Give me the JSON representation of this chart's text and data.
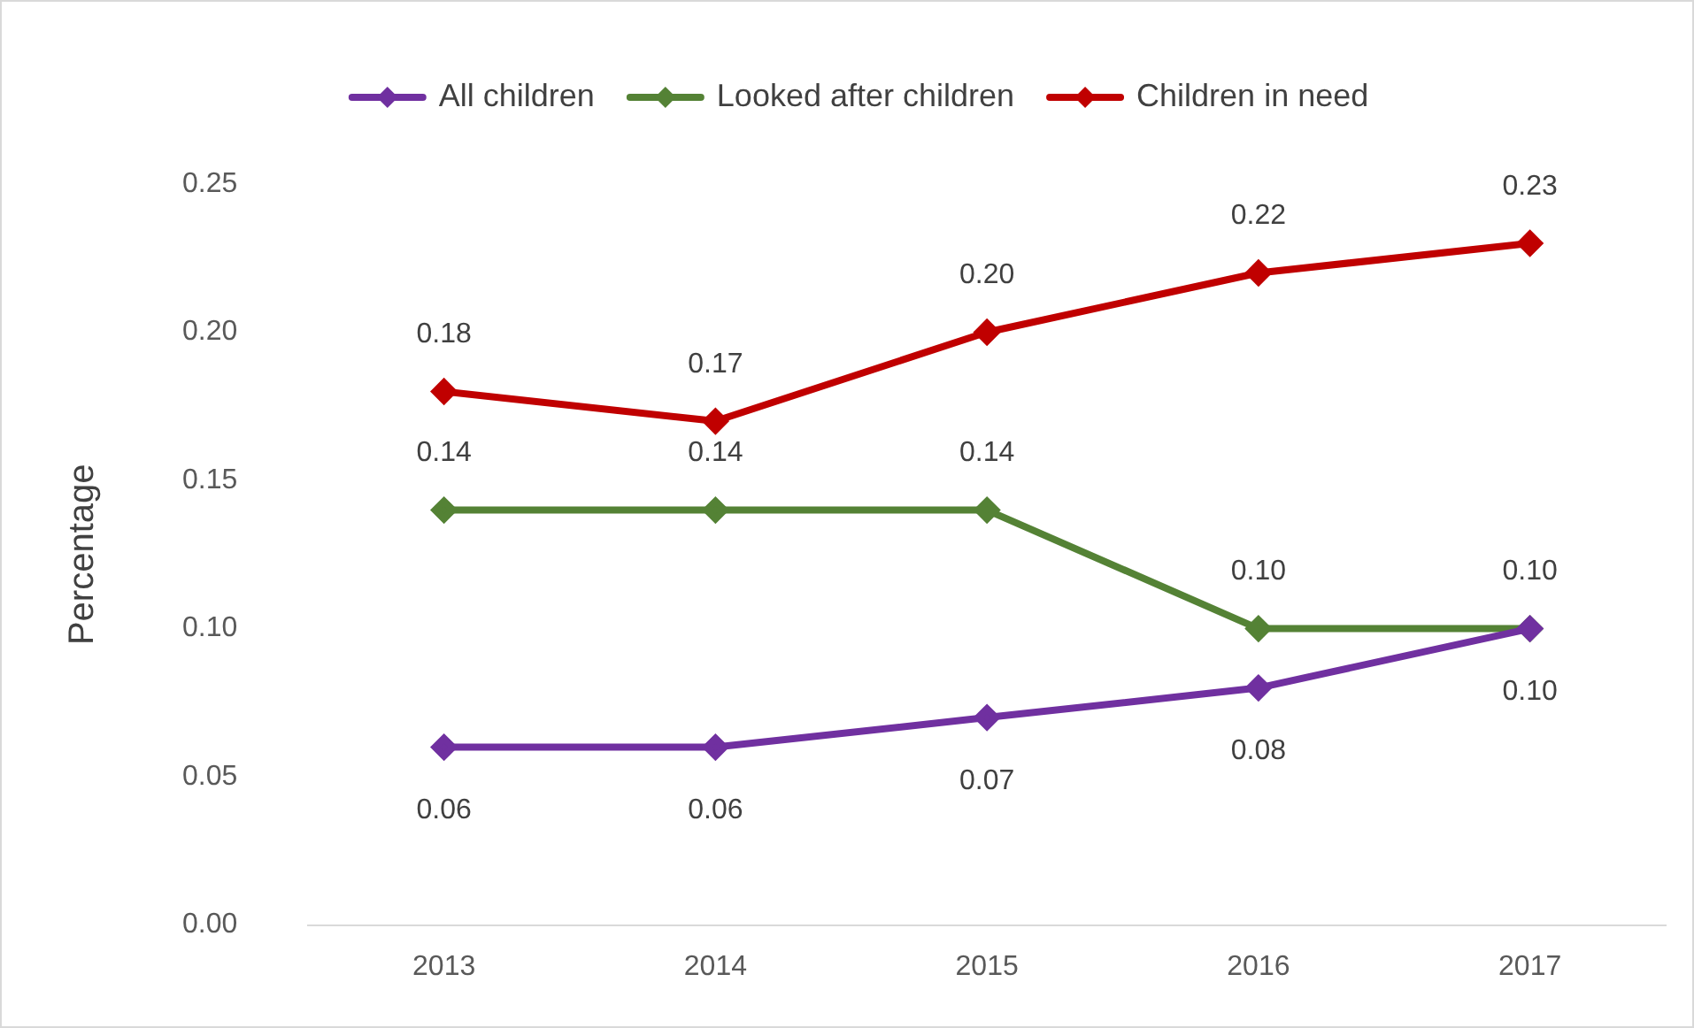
{
  "chart_data": {
    "type": "line",
    "ylabel": "Percentage",
    "categories": [
      "2013",
      "2014",
      "2015",
      "2016",
      "2017"
    ],
    "series": [
      {
        "name": "All children",
        "color": "#7030a0",
        "values": [
          0.06,
          0.06,
          0.07,
          0.08,
          0.1
        ],
        "value_labels": [
          "0.06",
          "0.06",
          "0.07",
          "0.08",
          "0.10"
        ]
      },
      {
        "name": "Looked after children",
        "color": "#548235",
        "values": [
          0.14,
          0.14,
          0.14,
          0.1,
          0.1
        ],
        "value_labels": [
          "0.14",
          "0.14",
          "0.14",
          "0.10",
          "0.10"
        ]
      },
      {
        "name": "Children in need",
        "color": "#c00000",
        "values": [
          0.18,
          0.17,
          0.2,
          0.22,
          0.23
        ],
        "value_labels": [
          "0.18",
          "0.17",
          "0.20",
          "0.22",
          "0.23"
        ]
      }
    ],
    "ylim": [
      0,
      0.25
    ],
    "yticks": [
      {
        "value": 0,
        "label": "0.00"
      },
      {
        "value": 0.05,
        "label": "0.05"
      },
      {
        "value": 0.1,
        "label": "0.10"
      },
      {
        "value": 0.15,
        "label": "0.15"
      },
      {
        "value": 0.2,
        "label": "0.20"
      },
      {
        "value": 0.25,
        "label": "0.25"
      }
    ],
    "grid": false,
    "legend": "top",
    "marker": "diamond",
    "line_style": "solid"
  }
}
